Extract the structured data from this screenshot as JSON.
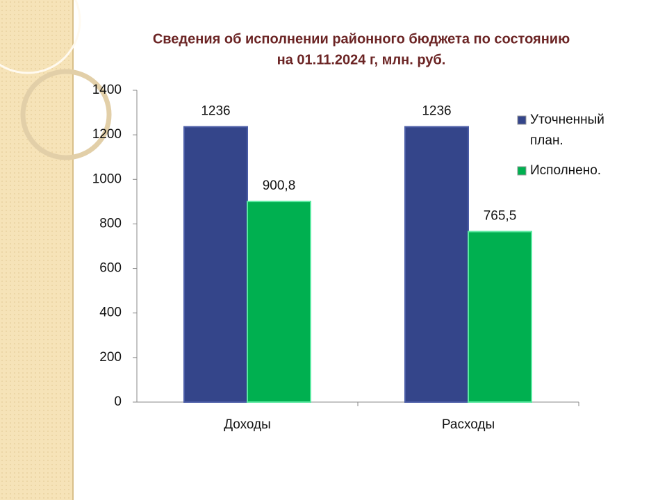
{
  "chart_data": {
    "type": "bar",
    "title": [
      "Сведения об исполнении районного бюджета по состоянию",
      "на 01.11.2024 г, млн. руб."
    ],
    "categories": [
      "Доходы",
      "Расходы"
    ],
    "series": [
      {
        "name": "Уточненный план.",
        "color": "#34458a",
        "values": [
          1236,
          1236
        ]
      },
      {
        "name": "Исполнено.",
        "color": "#00b050",
        "values": [
          900.8,
          765.5
        ],
        "value_labels": [
          "900,8",
          "765,5"
        ]
      }
    ],
    "ylim": [
      0,
      1400
    ],
    "yticks": [
      0,
      200,
      400,
      600,
      800,
      1000,
      1200,
      1400
    ],
    "grid": false,
    "legend": "right"
  }
}
